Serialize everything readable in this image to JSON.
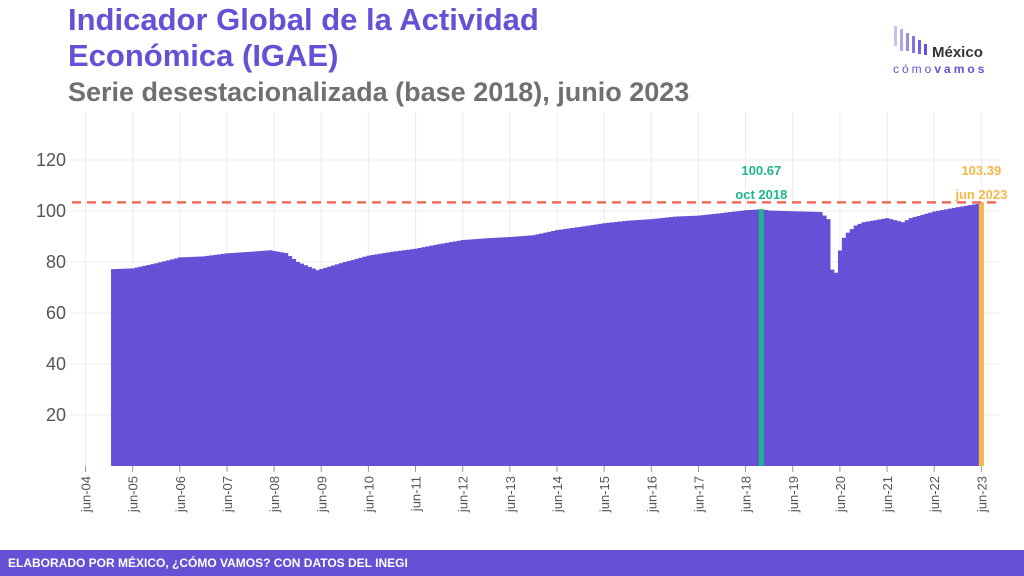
{
  "header": {
    "title": "Indicador Global de la Actividad Económica (IGAE)",
    "subtitle": "Serie desestacionalizada (base 2018), junio 2023"
  },
  "logo": {
    "name": "México",
    "sub_light": "cómo",
    "sub_bold": "vamos"
  },
  "footer": {
    "text": "ELABORADO POR MÉXICO, ¿CÓMO VAMOS? CON DATOS DEL INEGI"
  },
  "colors": {
    "bars": "#6650d6",
    "reference_line": "#f26b5b",
    "highlight_oct2018": "#1fb58b",
    "highlight_jun2023": "#f6b74a"
  },
  "chart_data": {
    "type": "bar",
    "x_tick_labels": [
      "jun-04",
      "jun-05",
      "jun-06",
      "jun-07",
      "jun-08",
      "jun-09",
      "jun-10",
      "jun-11",
      "jun-12",
      "jun-13",
      "jun-14",
      "jun-15",
      "jun-16",
      "jun-17",
      "jun-18",
      "jun-19",
      "jun-20",
      "jun-21",
      "jun-22",
      "jun-23"
    ],
    "y_ticks": [
      20,
      40,
      60,
      80,
      100,
      120
    ],
    "ylim": [
      0,
      135
    ],
    "grid": true,
    "reference_line": {
      "value": 103.39,
      "style": "dashed"
    },
    "series_start": "ene-05",
    "annotations": [
      {
        "value_label": "100.67",
        "date_label": "oct 2018",
        "color_key": "highlight_oct2018"
      },
      {
        "value_label": "103.39",
        "date_label": "jun 2023",
        "color_key": "highlight_jun2023"
      }
    ],
    "anchors": [
      [
        "ene-05",
        77.2
      ],
      [
        "jun-05",
        77.5
      ],
      [
        "dic-05",
        79.5
      ],
      [
        "jun-06",
        81.8
      ],
      [
        "dic-06",
        82.2
      ],
      [
        "jun-07",
        83.4
      ],
      [
        "dic-07",
        84.0
      ],
      [
        "may-08",
        84.6
      ],
      [
        "sep-08",
        83.5
      ],
      [
        "dic-08",
        80.0
      ],
      [
        "may-09",
        76.8
      ],
      [
        "dic-09",
        80.0
      ],
      [
        "jun-10",
        82.5
      ],
      [
        "dic-10",
        84.0
      ],
      [
        "jun-11",
        85.2
      ],
      [
        "dic-11",
        87.0
      ],
      [
        "jun-12",
        88.6
      ],
      [
        "dic-12",
        89.3
      ],
      [
        "jun-13",
        89.8
      ],
      [
        "dic-13",
        90.5
      ],
      [
        "jun-14",
        92.5
      ],
      [
        "dic-14",
        93.8
      ],
      [
        "jun-15",
        95.2
      ],
      [
        "dic-15",
        96.2
      ],
      [
        "jun-16",
        96.8
      ],
      [
        "dic-16",
        97.8
      ],
      [
        "jun-17",
        98.2
      ],
      [
        "dic-17",
        99.2
      ],
      [
        "jun-18",
        100.3
      ],
      [
        "oct-18",
        100.67
      ],
      [
        "dic-18",
        100.2
      ],
      [
        "jun-19",
        99.9
      ],
      [
        "ene-20",
        99.6
      ],
      [
        "mar-20",
        96.8
      ],
      [
        "abr-20",
        77.0
      ],
      [
        "may-20",
        75.8
      ],
      [
        "jun-20",
        84.5
      ],
      [
        "jul-20",
        89.5
      ],
      [
        "ago-20",
        91.5
      ],
      [
        "oct-20",
        94.3
      ],
      [
        "dic-20",
        95.6
      ],
      [
        "jun-21",
        97.2
      ],
      [
        "oct-21",
        95.6
      ],
      [
        "dic-21",
        97.2
      ],
      [
        "jun-22",
        99.8
      ],
      [
        "dic-22",
        101.5
      ],
      [
        "may-23",
        102.8
      ],
      [
        "jun-23",
        103.39
      ]
    ]
  }
}
